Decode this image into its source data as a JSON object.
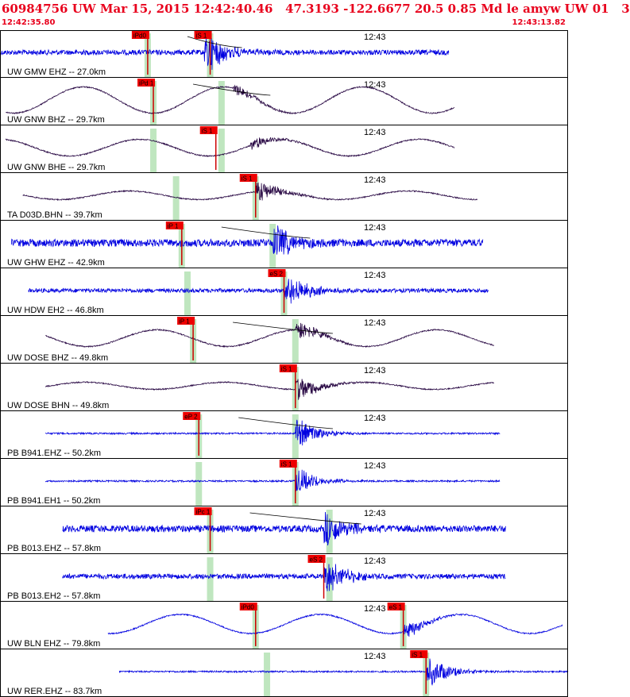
{
  "header": {
    "title": "60984756 UW Mar 15, 2015 12:42:40.46   47.3193 -122.6677 20.5 0.85 Md le amyw UW 01   3",
    "start_time": "12:42:35.80",
    "end_time": "12:43:13.82"
  },
  "time_tick_label": "12:43",
  "colors": {
    "header_text": "#e8001c",
    "trace_blue": "#0000e0",
    "trace_dark": "#2a0a45",
    "pick_box": "#ee0000",
    "window_band": "#bfe6bf",
    "grid": "#000000"
  },
  "traces": [
    {
      "label": "UW GMW EHZ -- 27.0km",
      "color": "blue",
      "type": "noise",
      "x0": 0.0,
      "x1": 0.79,
      "amp": 0.15,
      "burst_at": 0.37,
      "burst_amp": 0.9,
      "picks": [
        {
          "text": "iPd0",
          "at": 0.26
        },
        {
          "text": "iS 1",
          "at": 0.37
        }
      ],
      "bands": [
        0.26,
        0.37
      ],
      "curve": true
    },
    {
      "label": "UW GNW BHZ -- 29.7km",
      "color": "dark",
      "type": "wave",
      "x0": 0.01,
      "x1": 0.8,
      "amp": 0.55,
      "burst_at": 0.42,
      "burst_amp": 0.3,
      "picks": [
        {
          "text": "iPd 1",
          "at": 0.27
        }
      ],
      "bands": [
        0.27,
        0.39
      ],
      "curve": true
    },
    {
      "label": "UW GNW BHE -- 29.7km",
      "color": "dark",
      "type": "wave",
      "x0": 0.01,
      "x1": 0.8,
      "amp": 0.35,
      "burst_at": 0.45,
      "burst_amp": 0.3,
      "picks": [
        {
          "text": "iS 1",
          "at": 0.38
        }
      ],
      "bands": [
        0.27,
        0.39
      ],
      "curve": false
    },
    {
      "label": "TA D03D.BHN -- 39.7km",
      "color": "dark",
      "type": "wave",
      "x0": 0.04,
      "x1": 0.84,
      "amp": 0.18,
      "burst_at": 0.46,
      "burst_amp": 0.5,
      "picks": [
        {
          "text": "iS 1",
          "at": 0.45
        }
      ],
      "bands": [
        0.31,
        0.45
      ],
      "curve": false
    },
    {
      "label": "UW GHW EHZ -- 42.9km",
      "color": "blue",
      "type": "noise",
      "x0": 0.02,
      "x1": 0.85,
      "amp": 0.22,
      "burst_at": 0.49,
      "burst_amp": 0.8,
      "picks": [
        {
          "text": "iP 1",
          "at": 0.32
        }
      ],
      "bands": [
        0.32,
        0.48
      ],
      "curve": true
    },
    {
      "label": "UW HDW EH2 -- 46.8km",
      "color": "blue",
      "type": "noise",
      "x0": 0.05,
      "x1": 0.86,
      "amp": 0.12,
      "burst_at": 0.51,
      "burst_amp": 0.8,
      "picks": [
        {
          "text": "eS 2",
          "at": 0.5
        }
      ],
      "bands": [
        0.33,
        0.5
      ],
      "curve": false
    },
    {
      "label": "UW DOSE BHZ -- 49.8km",
      "color": "dark",
      "type": "wave",
      "x0": 0.08,
      "x1": 0.87,
      "amp": 0.35,
      "burst_at": 0.53,
      "burst_amp": 0.5,
      "picks": [
        {
          "text": "iP 1",
          "at": 0.34
        }
      ],
      "bands": [
        0.34,
        0.52
      ],
      "curve": true
    },
    {
      "label": "UW DOSE BHN -- 49.8km",
      "color": "dark",
      "type": "wave",
      "x0": 0.08,
      "x1": 0.87,
      "amp": 0.15,
      "burst_at": 0.53,
      "burst_amp": 0.6,
      "picks": [
        {
          "text": "iS 1",
          "at": 0.52
        }
      ],
      "bands": [
        0.52
      ],
      "curve": false
    },
    {
      "label": "PB B941.EHZ -- 50.2km",
      "color": "blue",
      "type": "noise",
      "x0": 0.08,
      "x1": 0.88,
      "amp": 0.05,
      "burst_at": 0.53,
      "burst_amp": 0.7,
      "picks": [
        {
          "text": "eP 2",
          "at": 0.35
        }
      ],
      "bands": [
        0.35,
        0.52
      ],
      "curve": true
    },
    {
      "label": "PB B941.EH1 -- 50.2km",
      "color": "blue",
      "type": "noise",
      "x0": 0.08,
      "x1": 0.88,
      "amp": 0.05,
      "burst_at": 0.53,
      "burst_amp": 0.6,
      "picks": [
        {
          "text": "iS 1",
          "at": 0.52
        }
      ],
      "bands": [
        0.35,
        0.52
      ],
      "curve": false
    },
    {
      "label": "PB B013.EHZ -- 57.8km",
      "color": "blue",
      "type": "noise",
      "x0": 0.11,
      "x1": 0.89,
      "amp": 0.2,
      "burst_at": 0.58,
      "burst_amp": 0.8,
      "picks": [
        {
          "text": "iPc 1",
          "at": 0.37
        }
      ],
      "bands": [
        0.37,
        0.58
      ],
      "curve": true
    },
    {
      "label": "PB B013.EH2 -- 57.8km",
      "color": "blue",
      "type": "noise",
      "x0": 0.11,
      "x1": 0.89,
      "amp": 0.15,
      "burst_at": 0.58,
      "burst_amp": 0.8,
      "picks": [
        {
          "text": "eS 2",
          "at": 0.57
        }
      ],
      "bands": [
        0.37,
        0.58
      ],
      "curve": false
    },
    {
      "label": "UW BLN EHZ -- 79.8km",
      "color": "blue",
      "type": "wave",
      "x0": 0.19,
      "x1": 0.99,
      "amp": 0.4,
      "burst_at": 0.72,
      "burst_amp": 0.4,
      "picks": [
        {
          "text": "iPd0",
          "at": 0.45
        },
        {
          "text": "eS 1",
          "at": 0.71
        }
      ],
      "bands": [
        0.45,
        0.71
      ],
      "curve": false
    },
    {
      "label": "UW RER.EHZ -- 83.7km",
      "color": "blue",
      "type": "noise",
      "x0": 0.21,
      "x1": 1.0,
      "amp": 0.05,
      "burst_at": 0.76,
      "burst_amp": 0.7,
      "picks": [
        {
          "text": "iS 1",
          "at": 0.75
        }
      ],
      "bands": [
        0.47,
        0.75
      ],
      "curve": false
    }
  ]
}
